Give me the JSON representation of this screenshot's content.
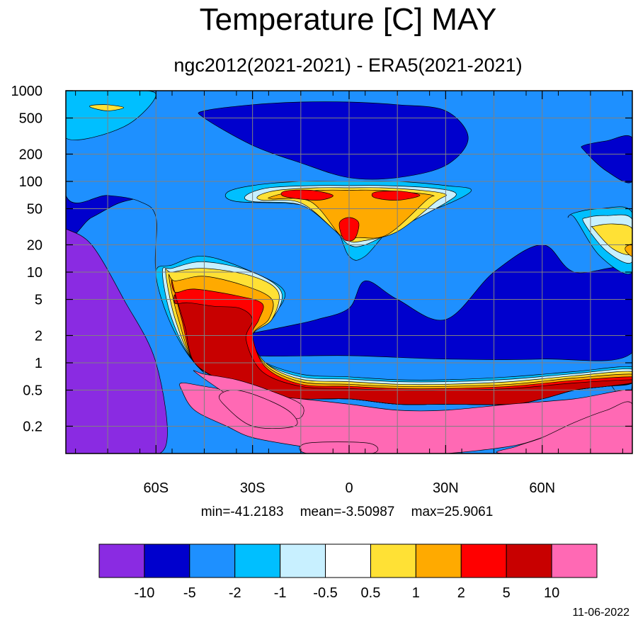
{
  "title": "Temperature [C] MAY",
  "subtitle": "ngc2012(2021-2021) - ERA5(2021-2021)",
  "stats": {
    "min": "min=-41.2183",
    "mean": "mean=-3.50987",
    "max": "max=25.9061"
  },
  "date": "11-06-2022",
  "chart_data": {
    "type": "heatmap",
    "title": "Temperature [C] MAY",
    "subtitle": "ngc2012(2021-2021) - ERA5(2021-2021)",
    "xlabel": "",
    "ylabel": "",
    "x_range": [
      -88,
      88
    ],
    "x_ticks": [
      -60,
      -30,
      0,
      30,
      60
    ],
    "x_tick_labels": [
      "60S",
      "30S",
      "0",
      "30N",
      "60N"
    ],
    "y_scale": "log",
    "y_reversed": true,
    "y_range": [
      1000,
      0.1
    ],
    "y_ticks": [
      0.2,
      0.5,
      1,
      2,
      5,
      10,
      20,
      50,
      100,
      200,
      500,
      1000
    ],
    "y_tick_labels": [
      "0.2",
      "0.5",
      "1",
      "2",
      "5",
      "10",
      "20",
      "50",
      "100",
      "200",
      "500",
      "1000"
    ],
    "grid": true,
    "colorbar": {
      "levels": [
        "-10",
        "-5",
        "-2",
        "-1",
        "-0.5",
        "0.5",
        "1",
        "2",
        "5",
        "10"
      ],
      "colors": [
        "#8a2be2",
        "#0000cd",
        "#1e90ff",
        "#00bfff",
        "#c8f0ff",
        "#ffffff",
        "#ffe135",
        "#ffaa00",
        "#ff0000",
        "#c80000",
        "#ff69b4"
      ]
    },
    "regions": [
      {
        "level": "-5",
        "lat": [
          -88,
          -80,
          -70,
          -60,
          -55,
          -50,
          -45,
          -38,
          -30,
          -20,
          -10,
          0,
          10,
          20,
          30,
          40,
          50,
          60,
          70,
          80,
          88,
          88,
          70,
          50,
          30,
          10,
          -10,
          -30,
          -50,
          -70,
          -88
        ],
        "p": [
          30,
          40,
          60,
          60,
          20,
          8,
          1.5,
          0.8,
          0.6,
          0.4,
          0.35,
          0.4,
          0.4,
          0.4,
          0.4,
          0.5,
          0.6,
          0.8,
          0.9,
          1,
          1,
          1000,
          1000,
          1000,
          1000,
          1000,
          1000,
          1000,
          1000,
          1000,
          1000
        ]
      },
      {
        "level": "-10",
        "lat": [
          -88,
          -88,
          -70,
          -57,
          -60,
          -70,
          -80,
          -88
        ],
        "p": [
          30,
          0.1,
          0.1,
          0.12,
          1,
          5,
          20,
          30
        ]
      },
      {
        "level": "-2",
        "lat": [
          -88,
          -75,
          -65,
          -60,
          -60,
          -55,
          -48,
          -38,
          -30,
          -20,
          -10,
          0,
          10,
          20,
          30,
          40,
          50,
          60,
          70,
          80,
          88,
          88,
          80,
          70,
          60,
          50,
          40,
          30,
          20,
          10,
          0,
          -10,
          -20,
          -30,
          -50,
          -70,
          -88
        ],
        "p": [
          70,
          70,
          60,
          40,
          10,
          3,
          1,
          0.5,
          0.35,
          0.25,
          0.2,
          0.2,
          0.2,
          0.2,
          0.25,
          0.3,
          0.35,
          0.45,
          0.5,
          0.6,
          0.6,
          1000,
          1000,
          1000,
          1000,
          1000,
          1000,
          1000,
          1000,
          1000,
          1000,
          1000,
          1000,
          1000,
          1000,
          1000,
          1000
        ]
      },
      {
        "level": "-5",
        "lat": [
          -45,
          -30,
          0,
          30,
          60,
          88,
          88,
          70,
          60,
          45,
          30,
          15,
          5,
          0,
          -10,
          -20,
          -40
        ],
        "p": [
          1.5,
          1.2,
          1.2,
          1.1,
          1.1,
          1.3,
          10,
          10,
          20,
          10,
          3,
          5,
          8,
          4,
          3,
          2.5,
          1.8
        ]
      },
      {
        "level": "-5",
        "lat": [
          -45,
          -30,
          -15,
          0,
          15,
          30,
          37,
          30,
          15,
          0,
          -15,
          -30,
          -45
        ],
        "p": [
          500,
          250,
          160,
          110,
          110,
          150,
          300,
          600,
          700,
          750,
          750,
          700,
          600
        ]
      },
      {
        "level": "-5",
        "lat": [
          73,
          80,
          88,
          88,
          80,
          73
        ],
        "p": [
          220,
          130,
          100,
          300,
          280,
          250
        ]
      },
      {
        "level": "-1",
        "lat": [
          -35,
          -15,
          -5,
          0,
          5,
          15,
          30,
          38,
          30,
          15,
          0,
          -15,
          -30,
          -38
        ],
        "p": [
          60,
          55,
          35,
          15,
          15,
          35,
          55,
          80,
          90,
          100,
          100,
          100,
          90,
          75
        ]
      },
      {
        "level": "-0.5",
        "lat": [
          -30,
          -15,
          -5,
          0,
          5,
          15,
          30,
          33,
          25,
          10,
          0,
          -10,
          -25,
          -32
        ],
        "p": [
          60,
          55,
          30,
          20,
          20,
          30,
          58,
          75,
          85,
          90,
          90,
          90,
          85,
          70
        ]
      },
      {
        "level": "0.5",
        "lat": [
          -27,
          -15,
          -4,
          0,
          4,
          15,
          27,
          30,
          22,
          10,
          0,
          -10,
          -22,
          -28
        ],
        "p": [
          62,
          58,
          28,
          22,
          22,
          28,
          60,
          72,
          80,
          85,
          85,
          85,
          80,
          70
        ]
      },
      {
        "level": "1",
        "lat": [
          -24,
          -12,
          -3,
          0,
          3,
          12,
          24,
          26,
          18,
          8,
          0,
          -8,
          -18,
          -24
        ],
        "p": [
          64,
          60,
          26,
          24,
          24,
          26,
          62,
          70,
          76,
          80,
          80,
          80,
          76,
          68
        ]
      },
      {
        "level": "2",
        "lat": [
          -20,
          -10,
          -5,
          -12,
          -20
        ],
        "p": [
          68,
          62,
          70,
          80,
          78
        ]
      },
      {
        "level": "2",
        "lat": [
          8,
          15,
          22,
          16,
          8
        ],
        "p": [
          66,
          62,
          70,
          78,
          76
        ]
      },
      {
        "level": "2",
        "lat": [
          -2,
          0,
          2,
          3,
          0,
          -3
        ],
        "p": [
          24,
          22,
          24,
          35,
          40,
          35
        ]
      },
      {
        "level": "-1",
        "lat": [
          -60,
          -56,
          -48,
          -38,
          -30,
          -15,
          0,
          15,
          30,
          50,
          60,
          70,
          80,
          88,
          88,
          70,
          50,
          30,
          15,
          0,
          -15,
          -28,
          -33,
          -25,
          -20,
          -30,
          -45,
          -55
        ],
        "p": [
          10,
          3,
          1,
          0.6,
          0.45,
          0.4,
          0.4,
          0.35,
          0.35,
          0.35,
          0.4,
          0.5,
          0.55,
          0.6,
          0.9,
          0.8,
          0.7,
          0.65,
          0.65,
          0.7,
          0.75,
          1.1,
          2,
          3,
          6,
          10,
          15,
          12
        ]
      },
      {
        "level": "-0.5",
        "lat": [
          -58,
          -55,
          -48,
          -38,
          -30,
          -15,
          0,
          15,
          30,
          50,
          60,
          70,
          80,
          88,
          88,
          70,
          50,
          30,
          15,
          0,
          -15,
          -27,
          -31,
          -24,
          -21,
          -30,
          -45,
          -55
        ],
        "p": [
          10,
          3,
          1,
          0.6,
          0.45,
          0.4,
          0.4,
          0.35,
          0.35,
          0.35,
          0.4,
          0.5,
          0.55,
          0.6,
          0.85,
          0.76,
          0.66,
          0.62,
          0.62,
          0.66,
          0.7,
          1.05,
          2,
          3,
          6,
          10,
          13,
          11
        ]
      },
      {
        "level": "0.5",
        "lat": [
          -57,
          -54,
          -48,
          -38,
          -30,
          -15,
          0,
          15,
          30,
          50,
          60,
          70,
          80,
          88,
          88,
          70,
          50,
          30,
          15,
          0,
          -15,
          -26,
          -30,
          -24,
          -22,
          -30,
          -45,
          -55
        ],
        "p": [
          10,
          3,
          1,
          0.6,
          0.45,
          0.4,
          0.4,
          0.35,
          0.35,
          0.35,
          0.4,
          0.5,
          0.55,
          0.6,
          0.8,
          0.72,
          0.62,
          0.58,
          0.58,
          0.62,
          0.66,
          1.0,
          2,
          3,
          6,
          9,
          11,
          10
        ]
      },
      {
        "level": "1",
        "lat": [
          -56,
          -53,
          -48,
          -38,
          -30,
          -15,
          0,
          15,
          30,
          50,
          60,
          70,
          80,
          88,
          88,
          70,
          50,
          30,
          15,
          0,
          -15,
          -26,
          -30,
          -25,
          -24,
          -32,
          -45,
          -54
        ],
        "p": [
          9,
          3,
          1,
          0.6,
          0.45,
          0.4,
          0.4,
          0.35,
          0.35,
          0.35,
          0.4,
          0.5,
          0.55,
          0.6,
          0.75,
          0.68,
          0.58,
          0.55,
          0.55,
          0.58,
          0.62,
          0.95,
          2,
          3,
          5,
          7,
          9,
          8
        ]
      },
      {
        "level": "2",
        "lat": [
          -55,
          -52,
          -48,
          -38,
          -30,
          -15,
          0,
          15,
          30,
          50,
          60,
          70,
          80,
          88,
          88,
          70,
          50,
          30,
          15,
          0,
          -15,
          -26,
          -30,
          -28,
          -27,
          -35,
          -48,
          -54
        ],
        "p": [
          8,
          3,
          1,
          0.6,
          0.45,
          0.4,
          0.4,
          0.35,
          0.35,
          0.35,
          0.4,
          0.5,
          0.55,
          0.6,
          0.7,
          0.64,
          0.55,
          0.52,
          0.52,
          0.55,
          0.58,
          0.9,
          2,
          3,
          4.5,
          5.5,
          6.5,
          6
        ]
      },
      {
        "level": "5",
        "lat": [
          -54,
          -51,
          -48,
          -38,
          -30,
          -15,
          0,
          15,
          30,
          50,
          60,
          70,
          80,
          88,
          88,
          70,
          50,
          30,
          15,
          0,
          -15,
          -27,
          -32,
          -30,
          -34,
          -42,
          -50,
          -54
        ],
        "p": [
          5.5,
          2.5,
          1,
          0.6,
          0.45,
          0.4,
          0.4,
          0.35,
          0.35,
          0.35,
          0.4,
          0.5,
          0.55,
          0.6,
          0.65,
          0.6,
          0.52,
          0.5,
          0.5,
          0.52,
          0.55,
          0.8,
          1.8,
          3,
          4,
          4.2,
          4.6,
          4.5
        ]
      },
      {
        "level": "10",
        "lat": [
          -52,
          -48,
          -38,
          -30,
          -15,
          0,
          15,
          30,
          50,
          60,
          70,
          80,
          88,
          88,
          70,
          50,
          30,
          15,
          0,
          -15,
          -30,
          -45,
          -52
        ],
        "p": [
          0.5,
          0.3,
          0.2,
          0.15,
          0.12,
          0.1,
          0.1,
          0.1,
          0.12,
          0.15,
          0.2,
          0.25,
          0.3,
          0.5,
          0.4,
          0.35,
          0.3,
          0.3,
          0.35,
          0.4,
          0.45,
          0.55,
          0.6
        ]
      },
      {
        "level": "10",
        "lat": [
          -48,
          -38,
          -30,
          -20,
          -15,
          -15,
          -25,
          -35,
          -45
        ],
        "p": [
          0.8,
          0.45,
          0.3,
          0.25,
          0.25,
          0.35,
          0.5,
          0.65,
          0.75
        ]
      },
      {
        "level": ">10",
        "lat": [
          -39,
          -30,
          -17,
          -18,
          -26,
          -35,
          -40
        ],
        "p": [
          0.35,
          0.2,
          0.2,
          0.28,
          0.4,
          0.5,
          0.45
        ]
      },
      {
        "level": ">10",
        "lat": [
          -13,
          7,
          6,
          -13
        ],
        "p": [
          0.1,
          0.1,
          0.13,
          0.13
        ]
      },
      {
        "level": ">10",
        "lat": [
          48,
          88,
          88,
          80,
          70,
          60,
          52
        ],
        "p": [
          0.1,
          0.1,
          0.35,
          0.3,
          0.22,
          0.15,
          0.12
        ]
      },
      {
        "level": "-1",
        "lat": [
          70,
          78,
          88,
          88,
          78,
          70,
          68
        ],
        "p": [
          40,
          15,
          10,
          45,
          50,
          45,
          40
        ]
      },
      {
        "level": "-0.5",
        "lat": [
          73,
          80,
          88,
          88,
          80,
          74
        ],
        "p": [
          35,
          17,
          13,
          38,
          42,
          40
        ]
      },
      {
        "level": "0.5",
        "lat": [
          76,
          82,
          88,
          88,
          82,
          76
        ],
        "p": [
          30,
          18,
          16,
          30,
          34,
          32
        ]
      },
      {
        "level": "1",
        "lat": [
          86,
          88,
          88,
          86
        ],
        "p": [
          17,
          15,
          20,
          19
        ]
      },
      {
        "level": "-1",
        "lat": [
          -88,
          -70,
          -60,
          -70,
          -88
        ],
        "p": [
          300,
          400,
          900,
          1000,
          1000
        ]
      },
      {
        "level": "0.5",
        "lat": [
          -80,
          -75,
          -70,
          -75,
          -80
        ],
        "p": [
          650,
          600,
          650,
          700,
          690
        ]
      }
    ]
  }
}
